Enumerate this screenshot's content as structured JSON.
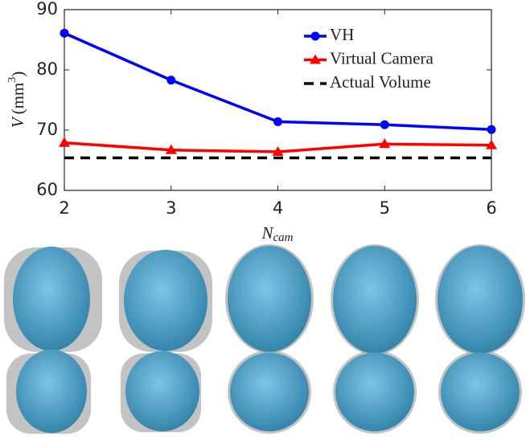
{
  "chart_data": {
    "type": "line",
    "x": [
      2,
      3,
      4,
      5,
      6
    ],
    "xlim": [
      2,
      6
    ],
    "xticks": [
      2,
      3,
      4,
      5,
      6
    ],
    "ylim": [
      60,
      90
    ],
    "yticks": [
      60,
      70,
      80,
      90
    ],
    "xlabel": {
      "symbol": "N",
      "subscript": "cam"
    },
    "ylabel": {
      "symbol": "V",
      "unit": "(mm",
      "exponent": "3",
      "close": ")"
    },
    "legend": "upper right",
    "series": [
      {
        "name": "VH",
        "color": "#0000ff",
        "marker": "circle",
        "dash": "solid",
        "values": [
          86.1,
          78.3,
          71.4,
          70.9,
          70.1
        ]
      },
      {
        "name": "Virtual Camera",
        "color": "#ff0000",
        "marker": "triangle",
        "dash": "solid",
        "values": [
          67.9,
          66.7,
          66.4,
          67.7,
          67.5
        ]
      },
      {
        "name": "Actual Volume",
        "color": "#000000",
        "marker": "none",
        "dash": "dashed",
        "values": [
          65.4,
          65.4,
          65.4,
          65.4,
          65.4
        ]
      }
    ]
  }
}
